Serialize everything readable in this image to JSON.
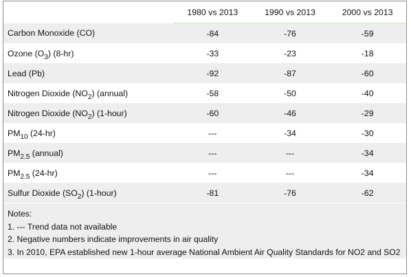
{
  "table": {
    "columns": [
      "1980 vs 2013",
      "1990 vs 2013",
      "2000 vs 2013"
    ],
    "rows": [
      {
        "pre": "Carbon Monoxide (CO)",
        "sub": "",
        "post": "",
        "values": [
          "-84",
          "-76",
          "-59"
        ]
      },
      {
        "pre": "Ozone (O",
        "sub": "3",
        "post": ")  (8-hr)",
        "values": [
          "-33",
          "-23",
          "-18"
        ]
      },
      {
        "pre": "Lead (Pb)",
        "sub": "",
        "post": "",
        "values": [
          "-92",
          "-87",
          "-60"
        ]
      },
      {
        "pre": "Nitrogen Dioxide (NO",
        "sub": "2",
        "post": ") (annual)",
        "values": [
          "-58",
          "-50",
          "-40"
        ]
      },
      {
        "pre": "Nitrogen Dioxide (NO",
        "sub": "2",
        "post": ") (1-hour)",
        "values": [
          "-60",
          "-46",
          "-29"
        ]
      },
      {
        "pre": "PM",
        "sub": "10",
        "post": " (24-hr)",
        "values": [
          "---",
          "-34",
          "-30"
        ]
      },
      {
        "pre": "PM",
        "sub": "2.5",
        "post": " (annual)",
        "values": [
          "---",
          "---",
          "-34"
        ]
      },
      {
        "pre": "PM",
        "sub": "2.5",
        "post": " (24-hr)",
        "values": [
          "---",
          "---",
          "-34"
        ]
      },
      {
        "pre": "Sulfur Dioxide (SO",
        "sub": "2",
        "post": ") (1-hour)",
        "values": [
          "-81",
          "-76",
          "-62"
        ]
      }
    ]
  },
  "notes": {
    "title": "Notes:",
    "items": [
      "1. --- Trend data not available",
      "2. Negative numbers indicate improvements in air quality",
      "3. In 2010, EPA established new 1-hour average National Ambient Air Quality Standards for NO2 and SO2"
    ]
  }
}
